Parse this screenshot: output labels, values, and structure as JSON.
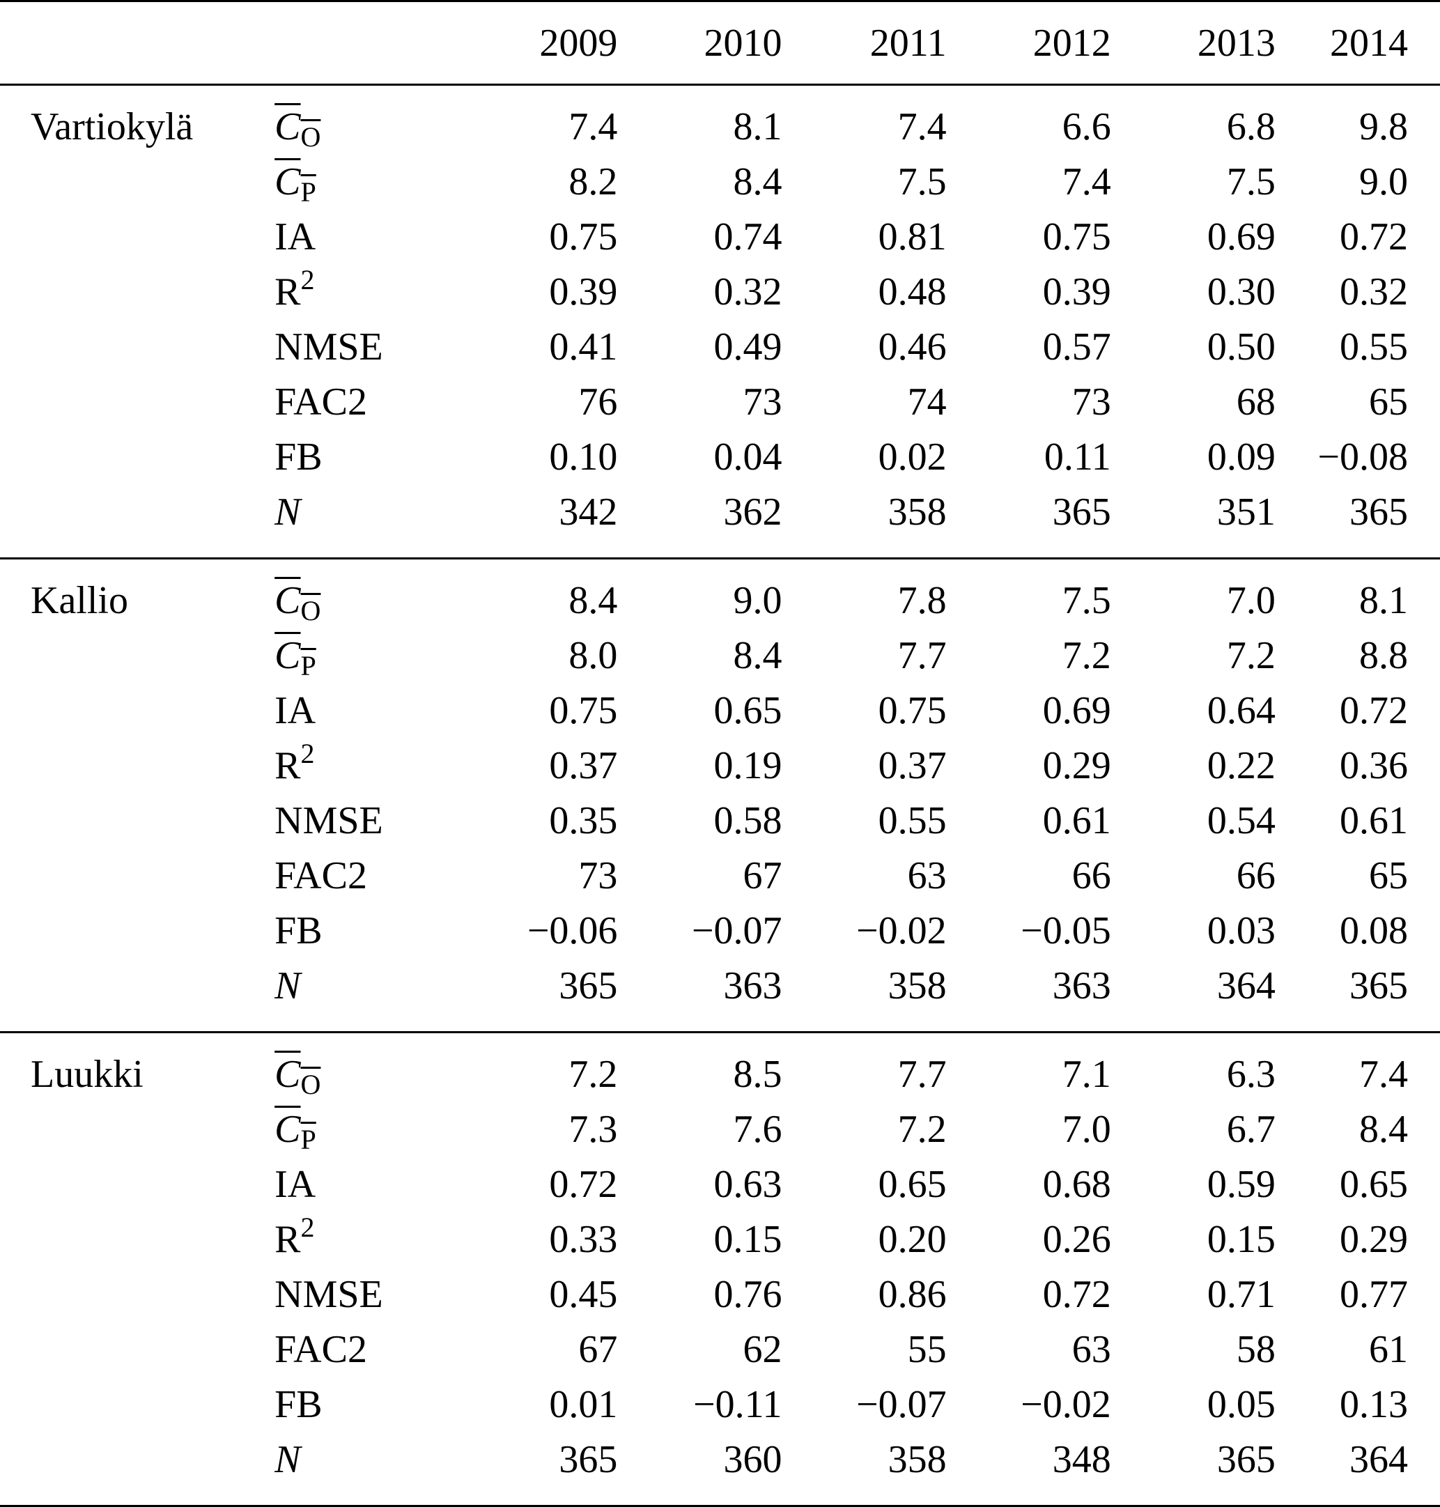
{
  "years": [
    "2009",
    "2010",
    "2011",
    "2012",
    "2013",
    "2014"
  ],
  "metrics": [
    {
      "base": "C",
      "sub": "O",
      "overline": true,
      "italic": true
    },
    {
      "base": "C",
      "sub": "P",
      "overline": true,
      "italic": true
    },
    {
      "base": "IA"
    },
    {
      "base": "R",
      "sup": "2"
    },
    {
      "base": "NMSE"
    },
    {
      "base": "FAC2"
    },
    {
      "base": "FB"
    },
    {
      "base": "N",
      "italic": true
    }
  ],
  "groups": [
    {
      "site": "Vartiokylä",
      "rows": [
        [
          "7.4",
          "8.1",
          "7.4",
          "6.6",
          "6.8",
          "9.8"
        ],
        [
          "8.2",
          "8.4",
          "7.5",
          "7.4",
          "7.5",
          "9.0"
        ],
        [
          "0.75",
          "0.74",
          "0.81",
          "0.75",
          "0.69",
          "0.72"
        ],
        [
          "0.39",
          "0.32",
          "0.48",
          "0.39",
          "0.30",
          "0.32"
        ],
        [
          "0.41",
          "0.49",
          "0.46",
          "0.57",
          "0.50",
          "0.55"
        ],
        [
          "76",
          "73",
          "74",
          "73",
          "68",
          "65"
        ],
        [
          "0.10",
          "0.04",
          "0.02",
          "0.11",
          "0.09",
          "−0.08"
        ],
        [
          "342",
          "362",
          "358",
          "365",
          "351",
          "365"
        ]
      ]
    },
    {
      "site": "Kallio",
      "rows": [
        [
          "8.4",
          "9.0",
          "7.8",
          "7.5",
          "7.0",
          "8.1"
        ],
        [
          "8.0",
          "8.4",
          "7.7",
          "7.2",
          "7.2",
          "8.8"
        ],
        [
          "0.75",
          "0.65",
          "0.75",
          "0.69",
          "0.64",
          "0.72"
        ],
        [
          "0.37",
          "0.19",
          "0.37",
          "0.29",
          "0.22",
          "0.36"
        ],
        [
          "0.35",
          "0.58",
          "0.55",
          "0.61",
          "0.54",
          "0.61"
        ],
        [
          "73",
          "67",
          "63",
          "66",
          "66",
          "65"
        ],
        [
          "−0.06",
          "−0.07",
          "−0.02",
          "−0.05",
          "0.03",
          "0.08"
        ],
        [
          "365",
          "363",
          "358",
          "363",
          "364",
          "365"
        ]
      ]
    },
    {
      "site": "Luukki",
      "rows": [
        [
          "7.2",
          "8.5",
          "7.7",
          "7.1",
          "6.3",
          "7.4"
        ],
        [
          "7.3",
          "7.6",
          "7.2",
          "7.0",
          "6.7",
          "8.4"
        ],
        [
          "0.72",
          "0.63",
          "0.65",
          "0.68",
          "0.59",
          "0.65"
        ],
        [
          "0.33",
          "0.15",
          "0.20",
          "0.26",
          "0.15",
          "0.29"
        ],
        [
          "0.45",
          "0.76",
          "0.86",
          "0.72",
          "0.71",
          "0.77"
        ],
        [
          "67",
          "62",
          "55",
          "63",
          "58",
          "61"
        ],
        [
          "0.01",
          "−0.11",
          "−0.07",
          "−0.02",
          "0.05",
          "0.13"
        ],
        [
          "365",
          "360",
          "358",
          "348",
          "365",
          "364"
        ]
      ]
    }
  ]
}
